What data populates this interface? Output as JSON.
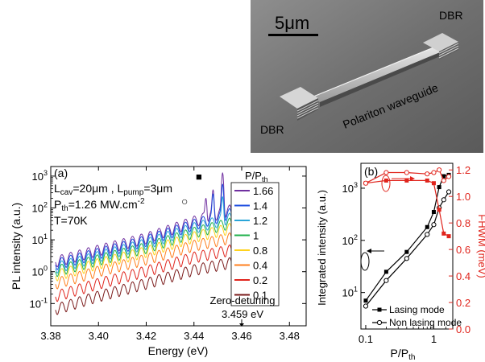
{
  "sem_image": {
    "scale_bar": "5μm",
    "dbr_left": "DBR",
    "dbr_right": "DBR",
    "waveguide_label": "Polariton waveguide"
  },
  "panel_a": {
    "panel_label": "(a)",
    "param_lines": {
      "lcav_main": "L",
      "lcav_sub": "cav",
      "lcav_val": "=20μm , L",
      "lpump_sub": "pump",
      "lpump_val": "=3μm",
      "pth_main": "P",
      "pth_sub": "th",
      "pth_val": "=1.26 MW.cm",
      "pth_sup": "-2",
      "temp": "T=70K"
    },
    "zero_detuning_label": "Zero-detuning",
    "zero_detuning_value": "3.459 eV",
    "ylabel": "PL intensity (a.u.)",
    "xlabel": "Energy (eV)",
    "legend_title_main": "P/P",
    "legend_title_sub": "th",
    "markers": {
      "filled_square": "■",
      "open_circle": "○"
    }
  },
  "panel_b": {
    "panel_label": "(b)",
    "ylabel_left": "Integrated intensity (a.u.)",
    "ylabel_right": "FHWM (meV)",
    "xlabel_main": "P/P",
    "xlabel_sub": "th"
  },
  "chart_data": [
    {
      "type": "line",
      "title": "",
      "xlabel": "Energy (eV)",
      "ylabel": "PL intensity (a.u.)",
      "xlim": [
        3.38,
        3.487
      ],
      "ylim": [
        0.02,
        2000
      ],
      "yscale": "log",
      "x_ticks": [
        "3.38",
        "3.40",
        "3.42",
        "3.44",
        "3.46",
        "3.48"
      ],
      "x_tick_values": [
        3.38,
        3.4,
        3.42,
        3.44,
        3.46,
        3.48
      ],
      "y_ticks": [
        "10-1",
        "100",
        "101",
        "102",
        "103"
      ],
      "y_tick_values": [
        0.1,
        1,
        10,
        100,
        1000
      ],
      "legend_position": "right",
      "series": [
        {
          "name": "1.66",
          "color": "#7030a0",
          "base": [
            [
              3.382,
              2.2
            ],
            [
              3.4,
              5
            ],
            [
              3.42,
              12
            ],
            [
              3.44,
              40
            ],
            [
              3.455,
              90
            ],
            [
              3.462,
              30
            ],
            [
              3.466,
              12
            ]
          ],
          "peaks": [
            [
              3.452,
              1200
            ],
            [
              3.448,
              300
            ],
            [
              3.445,
              160
            ]
          ]
        },
        {
          "name": "1.4",
          "color": "#1f4fe0",
          "base": [
            [
              3.382,
              1.8
            ],
            [
              3.4,
              4
            ],
            [
              3.42,
              10
            ],
            [
              3.44,
              32
            ],
            [
              3.455,
              70
            ],
            [
              3.462,
              22
            ],
            [
              3.466,
              10
            ]
          ],
          "peaks": [
            [
              3.452,
              500
            ],
            [
              3.448,
              220
            ]
          ]
        },
        {
          "name": "1.2",
          "color": "#2aa5d8",
          "base": [
            [
              3.382,
              1.4
            ],
            [
              3.4,
              3.2
            ],
            [
              3.42,
              8
            ],
            [
              3.44,
              25
            ],
            [
              3.455,
              50
            ],
            [
              3.462,
              16
            ],
            [
              3.466,
              8
            ]
          ],
          "peaks": [
            [
              3.452,
              180
            ]
          ]
        },
        {
          "name": "1",
          "color": "#22b24c",
          "base": [
            [
              3.382,
              1.1
            ],
            [
              3.4,
              2.5
            ],
            [
              3.42,
              6
            ],
            [
              3.44,
              18
            ],
            [
              3.455,
              35
            ],
            [
              3.462,
              12
            ],
            [
              3.466,
              6
            ]
          ],
          "peaks": []
        },
        {
          "name": "0.8",
          "color": "#ffd21e",
          "base": [
            [
              3.382,
              0.8
            ],
            [
              3.4,
              1.9
            ],
            [
              3.42,
              4.5
            ],
            [
              3.44,
              13
            ],
            [
              3.455,
              24
            ],
            [
              3.462,
              9
            ],
            [
              3.466,
              4.5
            ]
          ],
          "peaks": []
        },
        {
          "name": "0.4",
          "color": "#ff7f1e",
          "base": [
            [
              3.382,
              0.45
            ],
            [
              3.4,
              1.1
            ],
            [
              3.42,
              2.6
            ],
            [
              3.44,
              7
            ],
            [
              3.455,
              12
            ],
            [
              3.462,
              5
            ],
            [
              3.466,
              2.5
            ]
          ],
          "peaks": []
        },
        {
          "name": "0.2",
          "color": "#e0241c",
          "base": [
            [
              3.382,
              0.18
            ],
            [
              3.4,
              0.45
            ],
            [
              3.42,
              1.1
            ],
            [
              3.44,
              3
            ],
            [
              3.455,
              5
            ],
            [
              3.462,
              2.2
            ],
            [
              3.466,
              1.1
            ]
          ],
          "peaks": []
        },
        {
          "name": "0.1",
          "color": "#7a1a1a",
          "base": [
            [
              3.382,
              0.07
            ],
            [
              3.4,
              0.18
            ],
            [
              3.42,
              0.45
            ],
            [
              3.44,
              1.2
            ],
            [
              3.455,
              2
            ],
            [
              3.462,
              0.9
            ],
            [
              3.466,
              0.45
            ]
          ],
          "peaks": []
        }
      ]
    },
    {
      "type": "line",
      "title": "",
      "xlabel": "P/Pth",
      "ylabel": "Integrated intensity (a.u.)",
      "ylabel_right": "FHWM (meV)",
      "xscale": "log",
      "yscale": "log",
      "xlim": [
        0.085,
        1.9
      ],
      "ylim": [
        2,
        3000
      ],
      "ylim_right": [
        0,
        1.25
      ],
      "x_ticks": [
        "0.1",
        "1"
      ],
      "x_tick_values": [
        0.1,
        1
      ],
      "y_ticks": [
        "101",
        "102",
        "103"
      ],
      "y_tick_values": [
        10,
        100,
        1000
      ],
      "y_ticks_right": [
        "0.0",
        "0.2",
        "0.4",
        "0.6",
        "0.8",
        "1.0",
        "1.2"
      ],
      "legend_position": "bottom-right",
      "series": [
        {
          "name": "Lasing mode",
          "axis": "left",
          "color": "#000000",
          "marker": "filled-square",
          "x": [
            0.1,
            0.2,
            0.4,
            0.8,
            1.0,
            1.2,
            1.4,
            1.66
          ],
          "y": [
            7,
            25,
            60,
            180,
            350,
            1050,
            1700,
            1800
          ]
        },
        {
          "name": "Non lasing mode",
          "axis": "left",
          "color": "#000000",
          "marker": "open-circle",
          "x": [
            0.1,
            0.2,
            0.4,
            0.8,
            1.0,
            1.2,
            1.4,
            1.66
          ],
          "y": [
            5.5,
            17,
            45,
            130,
            200,
            420,
            600,
            850
          ]
        },
        {
          "name": "",
          "axis": "right",
          "color": "#e0241c",
          "marker": "filled-square",
          "x": [
            0.1,
            0.2,
            0.4,
            0.8,
            1.0,
            1.2,
            1.4,
            1.66
          ],
          "y": [
            1.1,
            1.12,
            1.12,
            1.12,
            1.1,
            0.9,
            0.72,
            0.7
          ]
        },
        {
          "name": "",
          "axis": "right",
          "color": "#e0241c",
          "marker": "open-circle",
          "x": [
            0.1,
            0.2,
            0.4,
            0.8,
            1.0,
            1.2,
            1.4,
            1.66
          ],
          "y": [
            1.1,
            1.18,
            1.18,
            1.17,
            1.18,
            1.2,
            1.12,
            1.15
          ]
        }
      ]
    }
  ]
}
